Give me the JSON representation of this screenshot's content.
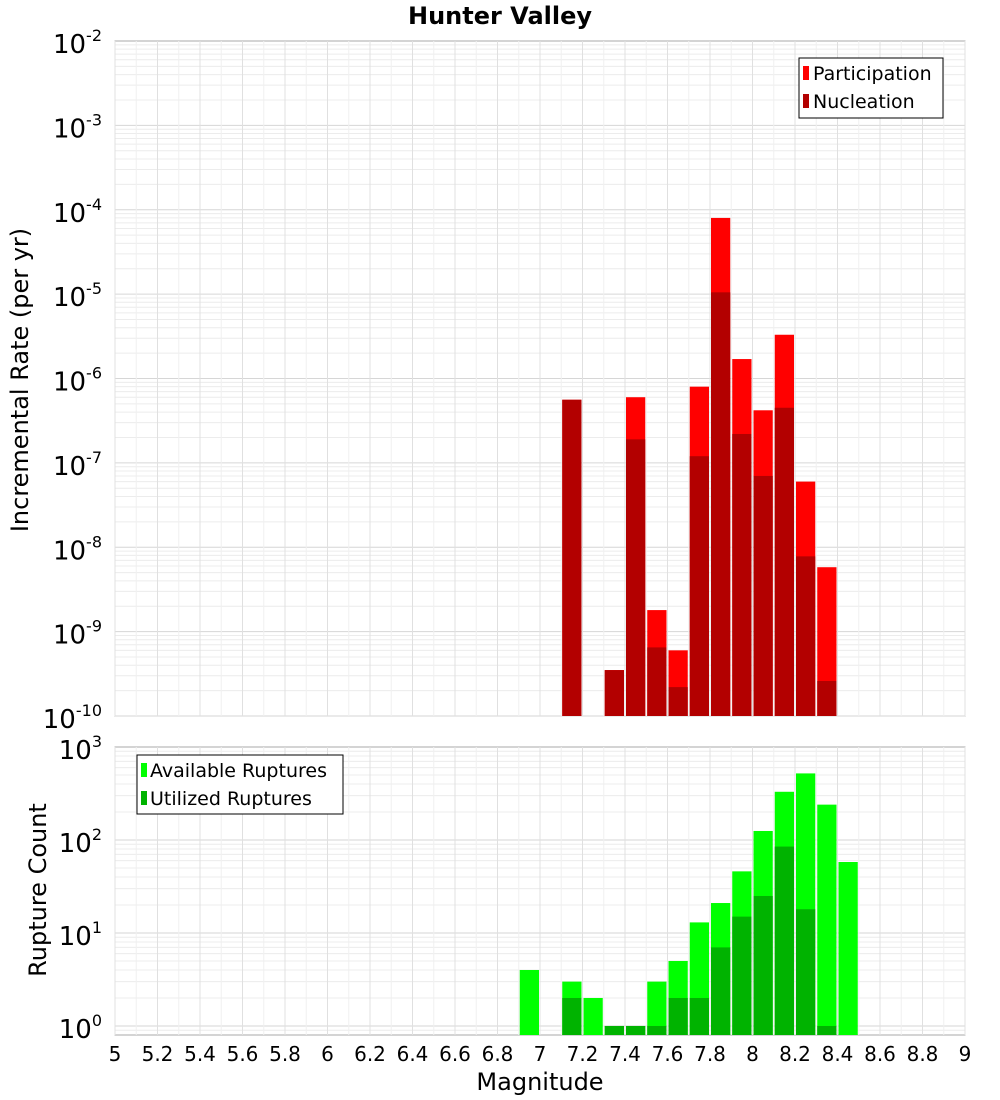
{
  "title": "Hunter Valley",
  "xlabel": "Magnitude",
  "xticks": [
    "5",
    "5.2",
    "5.4",
    "5.6",
    "5.8",
    "6",
    "6.2",
    "6.4",
    "6.6",
    "6.8",
    "7",
    "7.2",
    "7.4",
    "7.6",
    "7.8",
    "8",
    "8.2",
    "8.4",
    "8.6",
    "8.8",
    "9"
  ],
  "colors": {
    "participation": "#ff0000",
    "nucleation": "#b30000",
    "available": "#00ff00",
    "utilized": "#00b300"
  },
  "chart_data": [
    {
      "type": "bar",
      "scale": "log",
      "ylabel": "Incremental Rate (per yr)",
      "xlim": [
        5,
        9
      ],
      "ylim_exp": [
        -10,
        -2
      ],
      "yticks": [
        {
          "base": "10",
          "exp": "-2"
        },
        {
          "base": "10",
          "exp": "-3"
        },
        {
          "base": "10",
          "exp": "-4"
        },
        {
          "base": "10",
          "exp": "-5"
        },
        {
          "base": "10",
          "exp": "-6"
        },
        {
          "base": "10",
          "exp": "-7"
        },
        {
          "base": "10",
          "exp": "-8"
        },
        {
          "base": "10",
          "exp": "-9"
        },
        {
          "base": "10",
          "exp": "-10"
        }
      ],
      "legend": {
        "position": "top-right"
      },
      "x": [
        7.15,
        7.35,
        7.45,
        7.55,
        7.65,
        7.75,
        7.85,
        7.95,
        8.05,
        8.15,
        8.25,
        8.35
      ],
      "series": [
        {
          "name": "Participation",
          "color": "#ff0000",
          "values": [
            5.6e-07,
            3.5e-10,
            6e-07,
            1.8e-09,
            6e-10,
            8e-07,
            8e-05,
            1.7e-06,
            4.2e-07,
            3.3e-06,
            6e-08,
            5.8e-09
          ]
        },
        {
          "name": "Nucleation",
          "color": "#b30000",
          "values": [
            5.6e-07,
            3.5e-10,
            1.9e-07,
            6.5e-10,
            2.2e-10,
            1.2e-07,
            1.05e-05,
            2.2e-07,
            7e-08,
            4.5e-07,
            7.8e-09,
            2.6e-10
          ]
        }
      ]
    },
    {
      "type": "bar",
      "scale": "log",
      "ylabel": "Rupture Count",
      "xlim": [
        5,
        9
      ],
      "ylim": [
        0.8,
        1000
      ],
      "yticks": [
        {
          "base": "10",
          "exp": "3"
        },
        {
          "base": "10",
          "exp": "2"
        },
        {
          "base": "10",
          "exp": "1"
        },
        {
          "base": "10",
          "exp": "0"
        }
      ],
      "legend": {
        "position": "top-left"
      },
      "x": [
        6.95,
        7.15,
        7.25,
        7.35,
        7.45,
        7.55,
        7.65,
        7.75,
        7.85,
        7.95,
        8.05,
        8.15,
        8.25,
        8.35,
        8.45
      ],
      "series": [
        {
          "name": "Available Ruptures",
          "color": "#00ff00",
          "values": [
            4,
            3,
            2,
            1,
            1,
            3,
            5,
            13,
            21,
            46,
            125,
            330,
            520,
            240,
            58
          ]
        },
        {
          "name": "Utilized Ruptures",
          "color": "#00b300",
          "values": [
            0,
            2,
            0,
            1,
            1,
            1,
            2,
            2,
            7,
            15,
            25,
            85,
            18,
            1,
            0
          ]
        }
      ]
    }
  ]
}
